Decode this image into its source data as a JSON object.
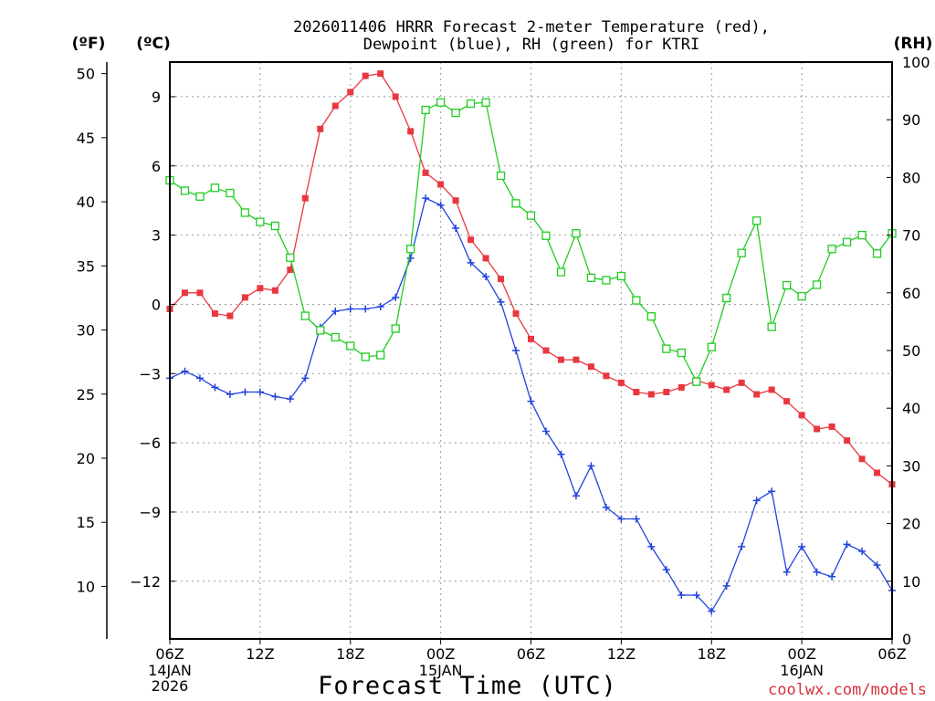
{
  "title_lines": [
    "2026011406 HRRR Forecast 2-meter Temperature (red),",
    "Dewpoint (blue), RH (green) for KTRI"
  ],
  "credit": "coolwx.com/models",
  "chart_data": {
    "type": "line",
    "title": "2026011406 HRRR Forecast 2-meter Temperature (red), Dewpoint (blue), RH (green) for KTRI",
    "xlabel": "Forecast Time (UTC)",
    "x_hours": [
      0,
      1,
      2,
      3,
      4,
      5,
      6,
      7,
      8,
      9,
      10,
      11,
      12,
      13,
      14,
      15,
      16,
      17,
      18,
      19,
      20,
      21,
      22,
      23,
      24,
      25,
      26,
      27,
      28,
      29,
      30,
      31,
      32,
      33,
      34,
      35,
      36,
      37,
      38,
      39,
      40,
      41,
      42,
      43,
      44,
      45,
      46,
      47,
      48
    ],
    "x_ticks": [
      {
        "hour": 0,
        "label": "06Z",
        "sub": [
          "14JAN",
          "2026"
        ]
      },
      {
        "hour": 6,
        "label": "12Z",
        "sub": []
      },
      {
        "hour": 12,
        "label": "18Z",
        "sub": []
      },
      {
        "hour": 18,
        "label": "00Z",
        "sub": [
          "15JAN"
        ]
      },
      {
        "hour": 24,
        "label": "06Z",
        "sub": []
      },
      {
        "hour": 30,
        "label": "12Z",
        "sub": []
      },
      {
        "hour": 36,
        "label": "18Z",
        "sub": []
      },
      {
        "hour": 42,
        "label": "00Z",
        "sub": [
          "16JAN"
        ]
      },
      {
        "hour": 48,
        "label": "06Z",
        "sub": []
      }
    ],
    "axes": {
      "fahrenheit": {
        "unit_label": "(ºF)",
        "ticks": [
          10,
          15,
          20,
          25,
          30,
          35,
          40,
          45,
          50
        ]
      },
      "celsius": {
        "unit_label": "(ºC)",
        "ylim": [
          -14.5,
          10.5
        ],
        "ticks": [
          -12,
          -9,
          -6,
          -3,
          0,
          3,
          6,
          9
        ],
        "tick_labels": [
          "−12",
          "−9",
          "−6",
          "−3",
          "0",
          "3",
          "6",
          "9"
        ]
      },
      "rh": {
        "unit_label": "(RH)",
        "ylim": [
          0,
          100
        ],
        "ticks": [
          0,
          10,
          20,
          30,
          40,
          50,
          60,
          70,
          80,
          90,
          100
        ]
      }
    },
    "series": [
      {
        "name": "Temperature",
        "color": "#e8383f",
        "marker": "filled-square",
        "units": "C",
        "values": [
          -0.2,
          0.5,
          0.5,
          -0.4,
          -0.5,
          0.3,
          0.7,
          0.6,
          1.5,
          4.6,
          7.6,
          8.6,
          9.2,
          9.9,
          10.0,
          9.0,
          7.5,
          5.7,
          5.2,
          4.5,
          2.8,
          2.0,
          1.1,
          -0.4,
          -1.5,
          -2.0,
          -2.4,
          -2.4,
          -2.7,
          -3.1,
          -3.4,
          -3.8,
          -3.9,
          -3.8,
          -3.6,
          -3.3,
          -3.5,
          -3.7,
          -3.4,
          -3.9,
          -3.7,
          -4.2,
          -4.8,
          -5.4,
          -5.3,
          -5.9,
          -6.7,
          -7.3,
          -7.8
        ]
      },
      {
        "name": "Dewpoint",
        "color": "#2244dd",
        "marker": "plus",
        "units": "C",
        "values": [
          -3.2,
          -2.9,
          -3.2,
          -3.6,
          -3.9,
          -3.8,
          -3.8,
          -4.0,
          -4.1,
          -3.2,
          -1.0,
          -0.3,
          -0.2,
          -0.2,
          -0.1,
          0.3,
          2.0,
          4.6,
          4.3,
          3.3,
          1.8,
          1.2,
          0.1,
          -2.0,
          -4.2,
          -5.5,
          -6.5,
          -8.3,
          -7.0,
          -8.8,
          -9.3,
          -9.3,
          -10.5,
          -11.5,
          -12.6,
          -12.6,
          -13.3,
          -12.2,
          -10.5,
          -8.5,
          -8.1,
          -11.6,
          -10.5,
          -11.6,
          -11.8,
          -10.4,
          -10.7,
          -11.3,
          -12.4
        ]
      },
      {
        "name": "RH",
        "color": "#22cc22",
        "marker": "open-square",
        "units": "%",
        "values": [
          79.5,
          77.7,
          76.7,
          78.2,
          77.3,
          73.9,
          72.3,
          71.6,
          66.1,
          56.0,
          53.5,
          52.3,
          50.8,
          48.9,
          49.2,
          53.8,
          67.6,
          91.7,
          93.0,
          91.2,
          92.8,
          93.0,
          80.3,
          75.5,
          73.4,
          69.9,
          63.6,
          70.3,
          62.6,
          62.2,
          62.9,
          58.7,
          55.9,
          50.3,
          49.6,
          44.6,
          50.6,
          59.1,
          66.9,
          72.5,
          54.1,
          61.3,
          59.4,
          61.4,
          67.6,
          68.8,
          70.0,
          66.8,
          70.3
        ]
      }
    ]
  }
}
